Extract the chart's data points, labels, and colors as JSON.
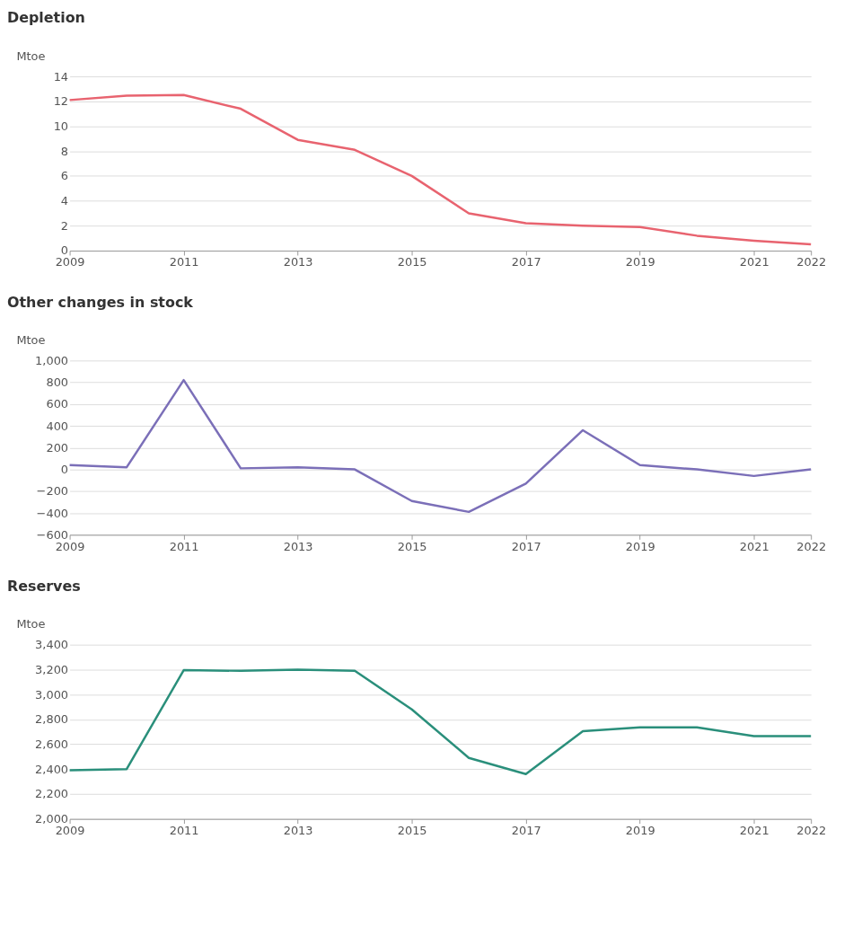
{
  "chart_data": [
    {
      "type": "line",
      "title": "Depletion",
      "ylabel": "Mtoe",
      "x": [
        2009,
        2010,
        2011,
        2012,
        2013,
        2014,
        2015,
        2016,
        2017,
        2018,
        2019,
        2020,
        2021,
        2022
      ],
      "series": [
        {
          "color": "#e8636f",
          "values": [
            12.1,
            12.45,
            12.5,
            11.4,
            8.9,
            8.1,
            6.0,
            3.0,
            2.2,
            2.0,
            1.9,
            1.2,
            0.8,
            0.5
          ]
        }
      ],
      "xlim": [
        2009,
        2022
      ],
      "xticks": [
        2009,
        2011,
        2013,
        2015,
        2017,
        2019,
        2021,
        2022
      ],
      "ylim": [
        0,
        14
      ],
      "yticks": [
        0,
        2,
        4,
        6,
        8,
        10,
        12,
        14
      ],
      "grid": "y",
      "marker": "none",
      "line_style": "solid"
    },
    {
      "type": "line",
      "title": "Other changes in stock",
      "ylabel": "Mtoe",
      "x": [
        2009,
        2010,
        2011,
        2012,
        2013,
        2014,
        2015,
        2016,
        2017,
        2018,
        2019,
        2020,
        2021,
        2022
      ],
      "series": [
        {
          "color": "#7b6fb8",
          "values": [
            40,
            20,
            820,
            10,
            20,
            0,
            -290,
            -390,
            -130,
            360,
            40,
            0,
            -60,
            0
          ]
        }
      ],
      "xlim": [
        2009,
        2022
      ],
      "xticks": [
        2009,
        2011,
        2013,
        2015,
        2017,
        2019,
        2021,
        2022
      ],
      "ylim": [
        -600,
        1000
      ],
      "yticks": [
        {
          "value": -600,
          "label": "−600"
        },
        {
          "value": -400,
          "label": "−400"
        },
        {
          "value": -200,
          "label": "−200"
        },
        0,
        200,
        400,
        600,
        800,
        {
          "value": 1000,
          "label": "1,000"
        }
      ],
      "grid": "y",
      "marker": "none",
      "line_style": "solid"
    },
    {
      "type": "line",
      "title": "Reserves",
      "ylabel": "Mtoe",
      "x": [
        2009,
        2010,
        2011,
        2012,
        2013,
        2014,
        2015,
        2016,
        2017,
        2018,
        2019,
        2020,
        2021,
        2022
      ],
      "series": [
        {
          "color": "#2a8f7b",
          "values": [
            2390,
            2400,
            3195,
            3190,
            3200,
            3190,
            2880,
            2490,
            2360,
            2705,
            2735,
            2735,
            2665,
            2665
          ]
        }
      ],
      "xlim": [
        2009,
        2022
      ],
      "xticks": [
        2009,
        2011,
        2013,
        2015,
        2017,
        2019,
        2021,
        2022
      ],
      "ylim": [
        2000,
        3400
      ],
      "yticks": [
        {
          "value": 2000,
          "label": "2,000"
        },
        {
          "value": 2200,
          "label": "2,200"
        },
        {
          "value": 2400,
          "label": "2,400"
        },
        {
          "value": 2600,
          "label": "2,600"
        },
        {
          "value": 2800,
          "label": "2,800"
        },
        {
          "value": 3000,
          "label": "3,000"
        },
        {
          "value": 3200,
          "label": "3,200"
        },
        {
          "value": 3400,
          "label": "3,400"
        }
      ],
      "grid": "y",
      "marker": "none",
      "line_style": "solid"
    }
  ]
}
